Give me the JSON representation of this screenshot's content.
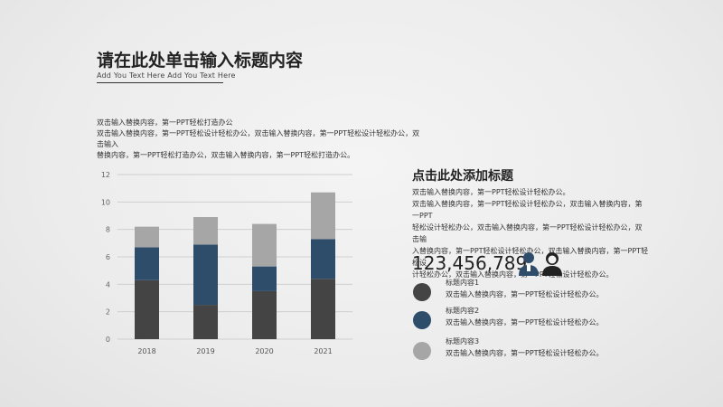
{
  "header": {
    "title": "请在此处单击输入标题内容",
    "subtitle": "Add You Text Here Add You Text Here"
  },
  "intro": {
    "lines": [
      "双击输入替换内容，第一PPT轻松打造办公",
      "双击输入替换内容，第一PPT轻松设计轻松办公，双击输入替换内容，第一PPT轻松设计轻松办公，双击输入",
      "替换内容，第一PPT轻松打造办公，双击输入替换内容，第一PPT轻松打造办公。"
    ]
  },
  "section": {
    "title": "点击此处添加标题",
    "lines": [
      "双击输入替换内容，第一PPT轻松设计轻松办公。",
      "双击输入替换内容，第一PPT轻松设计轻松办公，双击输入替换内容，第一PPT",
      "轻松设计轻松办公，双击输入替换内容，第一PPT轻松设计轻松办公，双击输",
      "入替换内容，第一PPT轻松设计轻松办公，双击输入替换内容，第一PPT轻松设",
      "计轻松办公，双击输入替换内容，第一PPT轻松设计轻松办公。"
    ]
  },
  "stats": {
    "number": "123,456,789",
    "icon": "male-female-people-icon"
  },
  "legend": [
    {
      "name": "标题内容1",
      "desc": "双击输入替换内容，第一PPT轻松设计轻松办公。",
      "color": "#444444"
    },
    {
      "name": "标题内容2",
      "desc": "双击输入替换内容，第一PPT轻松设计轻松办公。",
      "color": "#2e4d6b"
    },
    {
      "name": "标题内容3",
      "desc": "双击输入替换内容，第一PPT轻松设计轻松办公。",
      "color": "#a6a6a6"
    }
  ],
  "chart_data": {
    "type": "bar",
    "stacked": true,
    "categories": [
      "2018",
      "2019",
      "2020",
      "2021"
    ],
    "series": [
      {
        "values": [
          4.3,
          2.5,
          3.5,
          4.4
        ],
        "color": "#444444"
      },
      {
        "values": [
          2.4,
          4.4,
          1.8,
          2.9
        ],
        "color": "#2e4d6b"
      },
      {
        "values": [
          1.5,
          2.0,
          3.1,
          3.4
        ],
        "color": "#a6a6a6"
      }
    ],
    "ylim": [
      0,
      12
    ],
    "yticks": [
      "0",
      "2",
      "4",
      "6",
      "8",
      "10",
      "12"
    ],
    "grid": true
  }
}
